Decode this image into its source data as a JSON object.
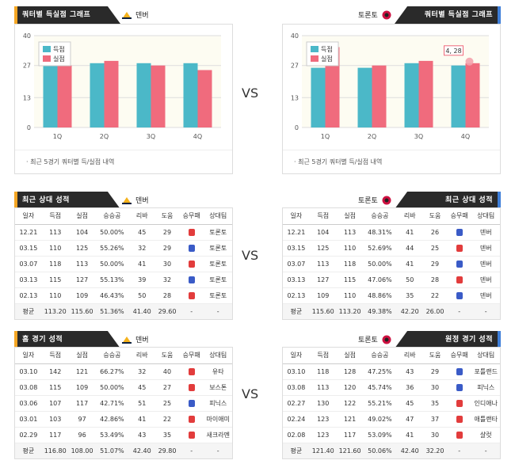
{
  "vs": "VS",
  "sections": {
    "chart": {
      "left_title": "쿼터별 득실점 그래프",
      "right_title": "쿼터별 득실점 그래프",
      "left_team": "덴버",
      "right_team": "토론토",
      "note": "최근 5경기 쿼터별 득/실점 내역",
      "tooltip": "4, 28"
    },
    "recent": {
      "left_title": "최근 상대 성적",
      "right_title": "최근 상대 성적",
      "left_team": "덴버",
      "right_team": "토론토"
    },
    "homeaway": {
      "left_title": "홈 경기 성적",
      "right_title": "원정 경기 성적",
      "left_team": "덴버",
      "right_team": "토론토"
    }
  },
  "headers": [
    "일자",
    "득점",
    "실점",
    "승승공",
    "리바",
    "도움",
    "승무패",
    "상대팀"
  ],
  "chart_data": [
    {
      "type": "bar",
      "categories": [
        "1Q",
        "2Q",
        "3Q",
        "4Q"
      ],
      "ylim": [
        0,
        40
      ],
      "yticks": [
        0,
        13,
        27,
        40
      ],
      "series": [
        {
          "name": "득점",
          "color": "#4bb8c8",
          "values": [
            28,
            28,
            28,
            28
          ]
        },
        {
          "name": "실점",
          "color": "#f06b7d",
          "values": [
            27,
            29,
            27,
            25
          ]
        }
      ]
    },
    {
      "type": "bar",
      "categories": [
        "1Q",
        "2Q",
        "3Q",
        "4Q"
      ],
      "ylim": [
        0,
        40
      ],
      "yticks": [
        0,
        13,
        27,
        40
      ],
      "series": [
        {
          "name": "득점",
          "color": "#4bb8c8",
          "values": [
            26,
            26,
            28,
            27
          ]
        },
        {
          "name": "실점",
          "color": "#f06b7d",
          "values": [
            35,
            27,
            29,
            28
          ]
        }
      ]
    }
  ],
  "tables": {
    "recent_left": {
      "rows": [
        [
          "12.21",
          "113",
          "104",
          "50.00%",
          "45",
          "29",
          "W",
          "토론토"
        ],
        [
          "03.15",
          "110",
          "125",
          "55.26%",
          "32",
          "29",
          "L",
          "토론토"
        ],
        [
          "03.07",
          "118",
          "113",
          "50.00%",
          "41",
          "30",
          "W",
          "토론토"
        ],
        [
          "03.13",
          "115",
          "127",
          "55.13%",
          "39",
          "32",
          "L",
          "토론토"
        ],
        [
          "02.13",
          "110",
          "109",
          "46.43%",
          "50",
          "28",
          "W",
          "토론토"
        ]
      ],
      "avg": [
        "평균",
        "113.20",
        "115.60",
        "51.36%",
        "41.40",
        "29.60",
        "-",
        "-"
      ]
    },
    "recent_right": {
      "rows": [
        [
          "12.21",
          "104",
          "113",
          "48.31%",
          "41",
          "26",
          "L",
          "덴버"
        ],
        [
          "03.15",
          "125",
          "110",
          "52.69%",
          "44",
          "25",
          "W",
          "덴버"
        ],
        [
          "03.07",
          "113",
          "118",
          "50.00%",
          "41",
          "29",
          "L",
          "덴버"
        ],
        [
          "03.13",
          "127",
          "115",
          "47.06%",
          "50",
          "28",
          "W",
          "덴버"
        ],
        [
          "02.13",
          "109",
          "110",
          "48.86%",
          "35",
          "22",
          "L",
          "덴버"
        ]
      ],
      "avg": [
        "평균",
        "115.60",
        "113.20",
        "49.38%",
        "42.20",
        "26.00",
        "-",
        "-"
      ]
    },
    "home_left": {
      "rows": [
        [
          "03.10",
          "142",
          "121",
          "66.27%",
          "32",
          "40",
          "W",
          "유타"
        ],
        [
          "03.08",
          "115",
          "109",
          "50.00%",
          "45",
          "27",
          "W",
          "보스톤"
        ],
        [
          "03.06",
          "107",
          "117",
          "42.71%",
          "51",
          "25",
          "L",
          "피닉스"
        ],
        [
          "03.01",
          "103",
          "97",
          "42.86%",
          "41",
          "22",
          "W",
          "마이애미"
        ],
        [
          "02.29",
          "117",
          "96",
          "53.49%",
          "43",
          "35",
          "W",
          "새크라멘"
        ]
      ],
      "avg": [
        "평균",
        "116.80",
        "108.00",
        "51.07%",
        "42.40",
        "29.80",
        "-",
        "-"
      ]
    },
    "away_right": {
      "rows": [
        [
          "03.10",
          "118",
          "128",
          "47.25%",
          "43",
          "29",
          "L",
          "포틀랜드"
        ],
        [
          "03.08",
          "113",
          "120",
          "45.74%",
          "36",
          "30",
          "L",
          "피닉스"
        ],
        [
          "02.27",
          "130",
          "122",
          "55.21%",
          "45",
          "35",
          "W",
          "인디애나"
        ],
        [
          "02.24",
          "123",
          "121",
          "49.02%",
          "47",
          "37",
          "W",
          "애틀랜타"
        ],
        [
          "02.08",
          "123",
          "117",
          "53.09%",
          "41",
          "30",
          "W",
          "샬럿"
        ]
      ],
      "avg": [
        "평균",
        "121.40",
        "121.60",
        "50.06%",
        "42.40",
        "32.20",
        "-",
        "-"
      ]
    }
  }
}
